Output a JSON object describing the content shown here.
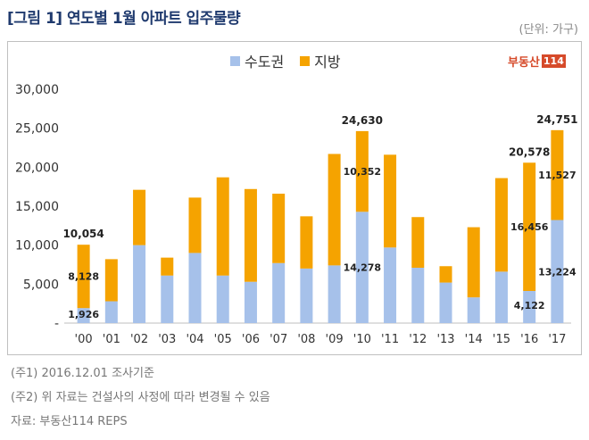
{
  "figure": {
    "title": "[그림 1] 연도별 1월 아파트 입주물량",
    "unit": "(단위: 가구)",
    "logo_text": "부동산",
    "logo_num": "114"
  },
  "colors": {
    "capital": "#a6c1ea",
    "local": "#f5a300"
  },
  "footnotes": [
    "(주1) 2016.12.01  조사기준",
    "(주2) 위 자료는 건설사의 사정에 따라 변경될 수 있음",
    "자료: 부동산114  REPS"
  ],
  "chart_data": {
    "type": "bar",
    "stacked": true,
    "categories": [
      "'00",
      "'01",
      "'02",
      "'03",
      "'04",
      "'05",
      "'06",
      "'07",
      "'08",
      "'09",
      "'10",
      "'11",
      "'12",
      "'13",
      "'14",
      "'15",
      "'16",
      "'17"
    ],
    "series": [
      {
        "name": "수도권",
        "values": [
          1926,
          2800,
          10000,
          6100,
          9000,
          6100,
          5300,
          7700,
          7000,
          7400,
          14278,
          9700,
          7100,
          5200,
          3300,
          6600,
          4122,
          13224
        ]
      },
      {
        "name": "지방",
        "values": [
          8128,
          5400,
          7100,
          2300,
          7100,
          12600,
          11900,
          8900,
          6700,
          14300,
          10352,
          11900,
          6500,
          2100,
          9000,
          12000,
          16456,
          11527
        ]
      }
    ],
    "ylim": [
      0,
      30000
    ],
    "yticks": [
      0,
      5000,
      10000,
      15000,
      20000,
      25000,
      30000
    ],
    "ytick_labels": [
      "-",
      "5,000",
      "10,000",
      "15,000",
      "20,000",
      "25,000",
      "30,000"
    ],
    "legend_position": "top-center",
    "grid": false,
    "data_labels": [
      {
        "category": "'00",
        "series": "수도권",
        "text": "1,926"
      },
      {
        "category": "'00",
        "series": "지방",
        "text": "8,128"
      },
      {
        "category": "'00",
        "series": "total",
        "text": "10,054"
      },
      {
        "category": "'10",
        "series": "수도권",
        "text": "14,278"
      },
      {
        "category": "'10",
        "series": "지방",
        "text": "10,352"
      },
      {
        "category": "'10",
        "series": "total",
        "text": "24,630"
      },
      {
        "category": "'16",
        "series": "수도권",
        "text": "4,122"
      },
      {
        "category": "'16",
        "series": "지방",
        "text": "16,456"
      },
      {
        "category": "'16",
        "series": "total",
        "text": "20,578"
      },
      {
        "category": "'17",
        "series": "수도권",
        "text": "13,224"
      },
      {
        "category": "'17",
        "series": "지방",
        "text": "11,527"
      },
      {
        "category": "'17",
        "series": "total",
        "text": "24,751"
      }
    ]
  }
}
